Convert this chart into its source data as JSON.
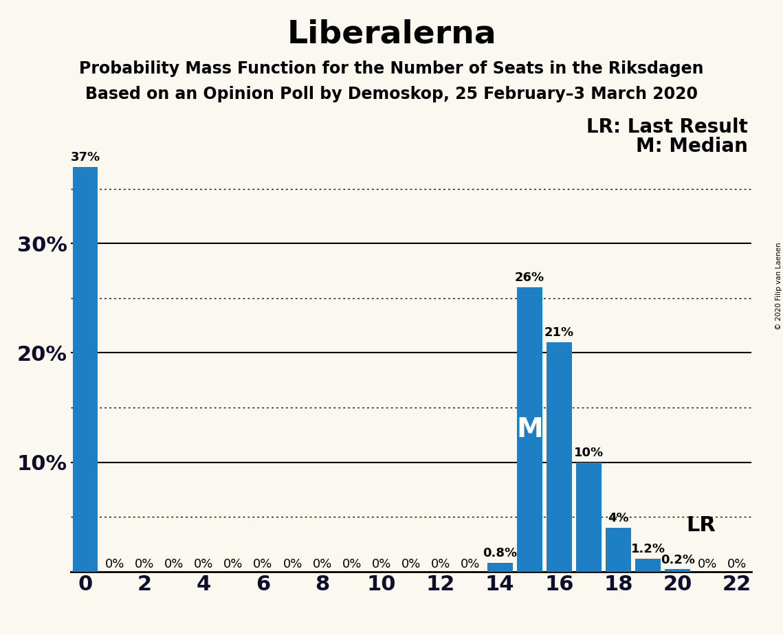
{
  "title": "Liberalerna",
  "subtitle1": "Probability Mass Function for the Number of Seats in the Riksdagen",
  "subtitle2": "Based on an Opinion Poll by Demoskop, 25 February–3 March 2020",
  "copyright": "© 2020 Filip van Laenen",
  "legend_lr": "LR: Last Result",
  "legend_m": "M: Median",
  "seats": [
    0,
    1,
    2,
    3,
    4,
    5,
    6,
    7,
    8,
    9,
    10,
    11,
    12,
    13,
    14,
    15,
    16,
    17,
    18,
    19,
    20,
    21,
    22
  ],
  "probabilities": [
    0.37,
    0.0,
    0.0,
    0.0,
    0.0,
    0.0,
    0.0,
    0.0,
    0.0,
    0.0,
    0.0,
    0.0,
    0.0,
    0.0,
    0.008,
    0.26,
    0.21,
    0.1,
    0.04,
    0.012,
    0.002,
    0.0,
    0.0
  ],
  "bar_labels": [
    "37%",
    "0%",
    "0%",
    "0%",
    "0%",
    "0%",
    "0%",
    "0%",
    "0%",
    "0%",
    "0%",
    "0%",
    "0%",
    "0%",
    "0.8%",
    "26%",
    "21%",
    "10%",
    "4%",
    "1.2%",
    "0.2%",
    "0%",
    "0%"
  ],
  "bar_color": "#1f7fc4",
  "median_seat": 15,
  "lr_seat": 19,
  "background_color": "#faf8ef",
  "xlim": [
    -0.5,
    22.5
  ],
  "ylim": [
    0,
    0.395
  ],
  "ytick_solid": [
    0.1,
    0.2,
    0.3
  ],
  "ytick_dotted": [
    0.05,
    0.15,
    0.25,
    0.35
  ],
  "ytick_labels_values": [
    0.1,
    0.2,
    0.3
  ],
  "ytick_labels_text": [
    "10%",
    "20%",
    "30%"
  ],
  "xticks": [
    0,
    2,
    4,
    6,
    8,
    10,
    12,
    14,
    16,
    18,
    20,
    22
  ],
  "title_fontsize": 34,
  "subtitle_fontsize": 17,
  "tick_fontsize": 22,
  "annotation_fontsize": 13,
  "legend_fontsize": 20,
  "median_label_fontsize": 28,
  "lr_label_fontsize": 22
}
